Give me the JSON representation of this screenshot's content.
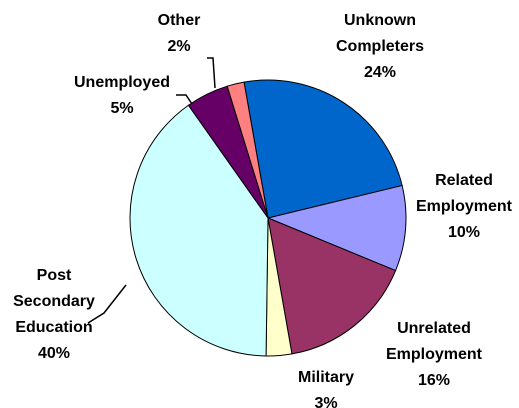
{
  "chart_data": {
    "type": "pie",
    "title": "",
    "slices": [
      {
        "name": "Unknown Completers",
        "value": 24,
        "label_lines": [
          "Unknown",
          "Completers",
          "24%"
        ],
        "color": "#0066cc"
      },
      {
        "name": "Related Employment",
        "value": 10,
        "label_lines": [
          "Related",
          "Employment",
          "10%"
        ],
        "color": "#9999ff"
      },
      {
        "name": "Unrelated Employment",
        "value": 16,
        "label_lines": [
          "Unrelated",
          "Employment",
          "16%"
        ],
        "color": "#993366"
      },
      {
        "name": "Military",
        "value": 3,
        "label_lines": [
          "Military",
          "3%"
        ],
        "color": "#ffffcc"
      },
      {
        "name": "Post Secondary Education",
        "value": 40,
        "label_lines": [
          "Post",
          "Secondary",
          "Education",
          "40%"
        ],
        "color": "#ccffff"
      },
      {
        "name": "Unemployed",
        "value": 5,
        "label_lines": [
          "Unemployed",
          "5%"
        ],
        "color": "#660066"
      },
      {
        "name": "Other",
        "value": 2,
        "label_lines": [
          "Other",
          "2%"
        ],
        "color": "#ff8080"
      }
    ],
    "start_angle_deg": -10,
    "direction": "clockwise",
    "legend": "none"
  }
}
